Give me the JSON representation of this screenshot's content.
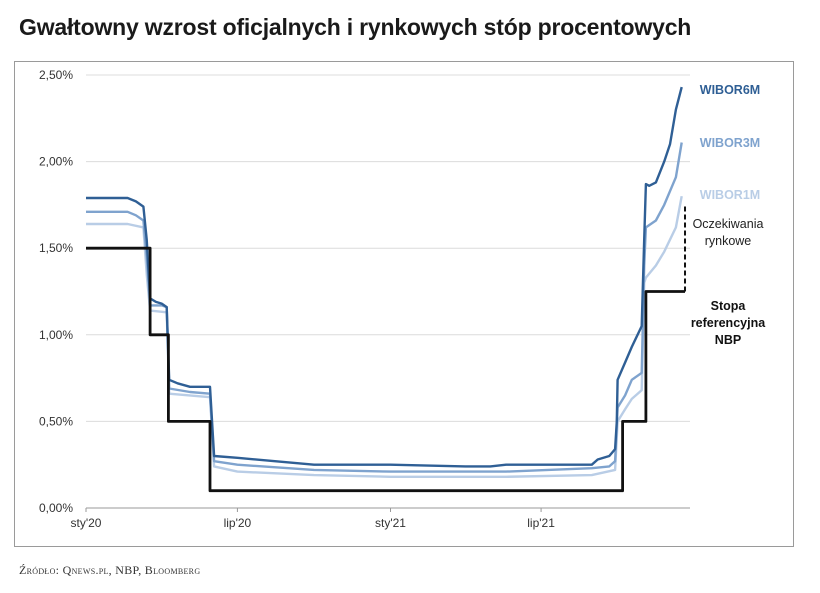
{
  "header": {
    "title": "Gwałtowny wzrost oficjalnych i rynkowych stóp procentowych"
  },
  "footer": {
    "source": "Źródło: Qnews.pl, NBP, Bloomberg"
  },
  "chart_data": {
    "type": "line",
    "title": "Gwałtowny wzrost oficjalnych i rynkowych stóp procentowych",
    "xlabel": "",
    "ylabel": "",
    "ylim": [
      0,
      2.5
    ],
    "xlim": [
      "2020-01-01",
      "2021-12-27"
    ],
    "y_ticks": [
      "0,00%",
      "0,50%",
      "1,00%",
      "1,50%",
      "2,00%",
      "2,50%"
    ],
    "x_ticks": [
      {
        "label": "sty'20",
        "date": "2020-01-01"
      },
      {
        "label": "lip'20",
        "date": "2020-07-01"
      },
      {
        "label": "sty'21",
        "date": "2021-01-01"
      },
      {
        "label": "lip'21",
        "date": "2021-07-01"
      }
    ],
    "grid": "horizontal",
    "series": [
      {
        "name": "WIBOR6M",
        "color": "#2f5f95",
        "width": 2.4,
        "points": [
          [
            "2020-01-01",
            1.79
          ],
          [
            "2020-02-20",
            1.79
          ],
          [
            "2020-03-01",
            1.77
          ],
          [
            "2020-03-10",
            1.74
          ],
          [
            "2020-03-14",
            1.55
          ],
          [
            "2020-03-18",
            1.21
          ],
          [
            "2020-03-25",
            1.19
          ],
          [
            "2020-04-01",
            1.18
          ],
          [
            "2020-04-07",
            1.16
          ],
          [
            "2020-04-10",
            0.74
          ],
          [
            "2020-04-20",
            0.72
          ],
          [
            "2020-05-05",
            0.7
          ],
          [
            "2020-05-29",
            0.7
          ],
          [
            "2020-06-03",
            0.3
          ],
          [
            "2020-07-01",
            0.29
          ],
          [
            "2020-08-15",
            0.27
          ],
          [
            "2020-10-01",
            0.25
          ],
          [
            "2021-01-01",
            0.25
          ],
          [
            "2021-04-01",
            0.24
          ],
          [
            "2021-05-01",
            0.24
          ],
          [
            "2021-05-20",
            0.25
          ],
          [
            "2021-08-31",
            0.25
          ],
          [
            "2021-09-07",
            0.28
          ],
          [
            "2021-09-21",
            0.3
          ],
          [
            "2021-09-28",
            0.34
          ],
          [
            "2021-09-30",
            0.5
          ],
          [
            "2021-10-01",
            0.74
          ],
          [
            "2021-10-10",
            0.84
          ],
          [
            "2021-10-18",
            0.93
          ],
          [
            "2021-10-30",
            1.05
          ],
          [
            "2021-11-02",
            1.55
          ],
          [
            "2021-11-04",
            1.87
          ],
          [
            "2021-11-08",
            1.86
          ],
          [
            "2021-11-16",
            1.88
          ],
          [
            "2021-11-26",
            2.0
          ],
          [
            "2021-12-03",
            2.1
          ],
          [
            "2021-12-10",
            2.3
          ],
          [
            "2021-12-17",
            2.43
          ]
        ]
      },
      {
        "name": "WIBOR3M",
        "color": "#7fa3ce",
        "width": 2.4,
        "points": [
          [
            "2020-01-01",
            1.71
          ],
          [
            "2020-02-20",
            1.71
          ],
          [
            "2020-03-01",
            1.69
          ],
          [
            "2020-03-10",
            1.66
          ],
          [
            "2020-03-14",
            1.45
          ],
          [
            "2020-03-18",
            1.17
          ],
          [
            "2020-04-01",
            1.17
          ],
          [
            "2020-04-07",
            1.16
          ],
          [
            "2020-04-10",
            0.69
          ],
          [
            "2020-05-05",
            0.67
          ],
          [
            "2020-05-29",
            0.66
          ],
          [
            "2020-06-03",
            0.27
          ],
          [
            "2020-07-01",
            0.25
          ],
          [
            "2020-10-01",
            0.22
          ],
          [
            "2021-01-01",
            0.21
          ],
          [
            "2021-05-20",
            0.21
          ],
          [
            "2021-08-31",
            0.23
          ],
          [
            "2021-09-21",
            0.24
          ],
          [
            "2021-09-28",
            0.27
          ],
          [
            "2021-10-01",
            0.58
          ],
          [
            "2021-10-10",
            0.65
          ],
          [
            "2021-10-18",
            0.74
          ],
          [
            "2021-10-30",
            0.78
          ],
          [
            "2021-11-02",
            1.4
          ],
          [
            "2021-11-04",
            1.62
          ],
          [
            "2021-11-16",
            1.66
          ],
          [
            "2021-11-26",
            1.75
          ],
          [
            "2021-12-10",
            1.91
          ],
          [
            "2021-12-17",
            2.11
          ]
        ]
      },
      {
        "name": "WIBOR1M",
        "color": "#b9cde6",
        "width": 2.4,
        "points": [
          [
            "2020-01-01",
            1.64
          ],
          [
            "2020-02-20",
            1.64
          ],
          [
            "2020-03-10",
            1.62
          ],
          [
            "2020-03-14",
            1.35
          ],
          [
            "2020-03-18",
            1.14
          ],
          [
            "2020-04-07",
            1.13
          ],
          [
            "2020-04-10",
            0.66
          ],
          [
            "2020-05-29",
            0.64
          ],
          [
            "2020-06-03",
            0.24
          ],
          [
            "2020-07-01",
            0.21
          ],
          [
            "2020-10-01",
            0.19
          ],
          [
            "2021-01-01",
            0.18
          ],
          [
            "2021-05-20",
            0.18
          ],
          [
            "2021-08-31",
            0.19
          ],
          [
            "2021-09-28",
            0.22
          ],
          [
            "2021-10-01",
            0.5
          ],
          [
            "2021-10-10",
            0.57
          ],
          [
            "2021-10-18",
            0.63
          ],
          [
            "2021-10-30",
            0.68
          ],
          [
            "2021-11-02",
            1.3
          ],
          [
            "2021-11-04",
            1.33
          ],
          [
            "2021-11-16",
            1.4
          ],
          [
            "2021-11-26",
            1.48
          ],
          [
            "2021-12-10",
            1.62
          ],
          [
            "2021-12-17",
            1.8
          ]
        ]
      },
      {
        "name": "Stopa referencyjna NBP",
        "color": "#111111",
        "width": 2.8,
        "points": [
          [
            "2020-01-01",
            1.5
          ],
          [
            "2020-03-18",
            1.5
          ],
          [
            "2020-03-18",
            1.0
          ],
          [
            "2020-04-09",
            1.0
          ],
          [
            "2020-04-09",
            0.5
          ],
          [
            "2020-05-29",
            0.5
          ],
          [
            "2020-05-29",
            0.1
          ],
          [
            "2021-10-07",
            0.1
          ],
          [
            "2021-10-07",
            0.5
          ],
          [
            "2021-11-04",
            0.5
          ],
          [
            "2021-11-04",
            1.25
          ],
          [
            "2021-12-21",
            1.25
          ]
        ]
      }
    ],
    "annotations": {
      "expectations_line": {
        "date": "2021-12-21",
        "from": 1.25,
        "to": 1.75,
        "style": "dashed"
      },
      "labels": [
        {
          "id": "wibor6m",
          "lines": [
            "WIBOR6M"
          ],
          "color": "#2f5f95",
          "bold": true
        },
        {
          "id": "wibor3m",
          "lines": [
            "WIBOR3M"
          ],
          "color": "#7fa3ce",
          "bold": true
        },
        {
          "id": "wibor1m",
          "lines": [
            "WIBOR1M"
          ],
          "color": "#b9cde6",
          "bold": true
        },
        {
          "id": "expectations",
          "lines": [
            "Oczekiwania",
            "rynkowe"
          ],
          "color": "#222222",
          "bold": false
        },
        {
          "id": "nbp-rate",
          "lines": [
            "Stopa",
            "referencyjna",
            "NBP"
          ],
          "color": "#111111",
          "bold": true
        }
      ]
    }
  }
}
